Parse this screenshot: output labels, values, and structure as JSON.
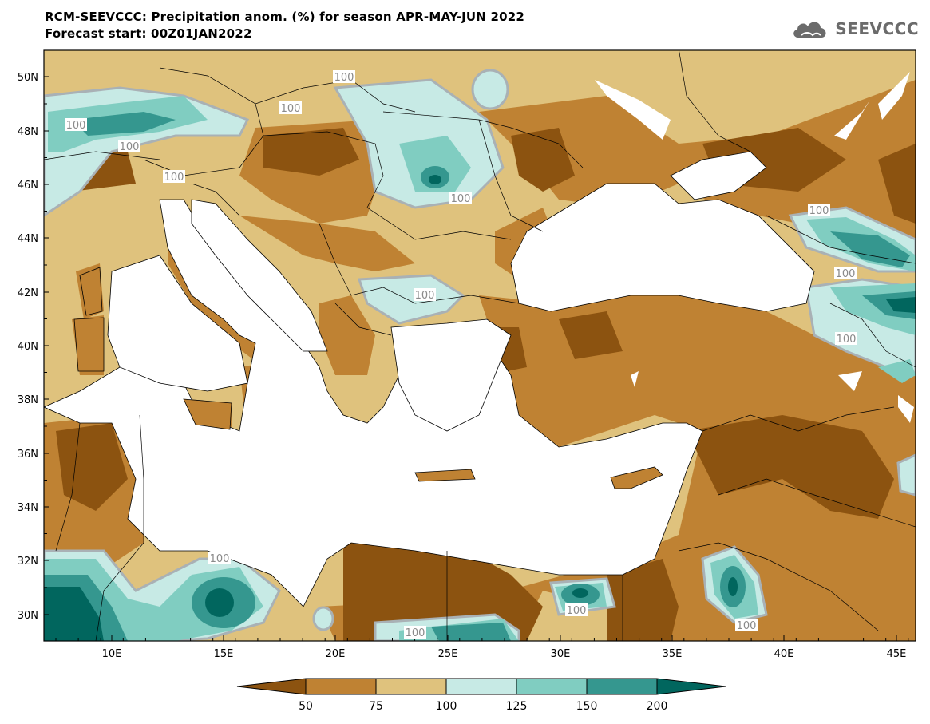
{
  "header": {
    "title_line1": "RCM-SEEVCCC: Precipitation anom. (%) for season APR-MAY-JUN 2022",
    "title_line2": "Forecast start: 00Z01JAN2022",
    "logo_text": "SEEVCCC"
  },
  "map": {
    "lat_labels": [
      "50N",
      "48N",
      "46N",
      "44N",
      "42N",
      "40N",
      "38N",
      "36N",
      "34N",
      "32N",
      "30N"
    ],
    "lon_labels": [
      "10E",
      "15E",
      "20E",
      "25E",
      "30E",
      "35E",
      "40E",
      "45E"
    ],
    "contour_labels": [
      "100",
      "100",
      "100",
      "100",
      "100",
      "100",
      "100",
      "100",
      "100",
      "100",
      "100",
      "100",
      "100",
      "100"
    ]
  },
  "colorbar": {
    "colors": [
      "#8c5310",
      "#bf8233",
      "#dfc27d",
      "#c7eae5",
      "#80cdc1",
      "#35978f",
      "#01665e"
    ],
    "tick_labels": [
      "50",
      "75",
      "100",
      "125",
      "150",
      "200"
    ]
  }
}
